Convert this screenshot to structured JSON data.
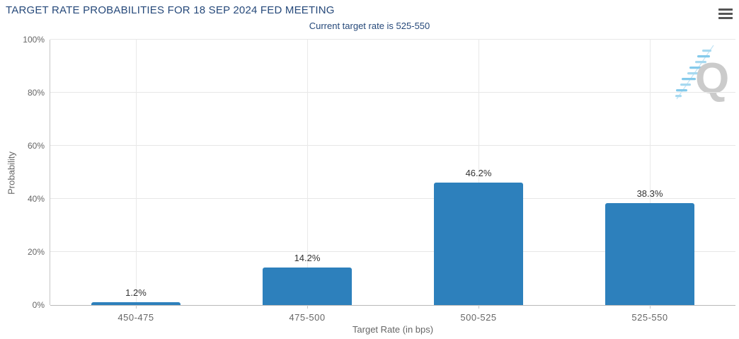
{
  "header": {
    "title": "TARGET RATE PROBABILITIES FOR 18 SEP 2024 FED MEETING",
    "subtitle": "Current target rate is 525-550"
  },
  "icons": {
    "menu": "hamburger-menu-icon",
    "watermark": "quikstrike-q-logo-watermark"
  },
  "chart_data": {
    "type": "bar",
    "title": "TARGET RATE PROBABILITIES FOR 18 SEP 2024 FED MEETING",
    "subtitle": "Current target rate is 525-550",
    "categories": [
      "450-475",
      "475-500",
      "500-525",
      "525-550"
    ],
    "values": [
      1.2,
      14.2,
      46.2,
      38.3
    ],
    "value_labels": [
      "1.2%",
      "14.2%",
      "46.2%",
      "38.3%"
    ],
    "xlabel": "Target Rate (in bps)",
    "ylabel": "Probability",
    "ylim": [
      0,
      100
    ],
    "yticks": [
      0,
      20,
      40,
      60,
      80,
      100
    ],
    "ytick_labels": [
      "0%",
      "20%",
      "40%",
      "60%",
      "80%",
      "100%"
    ],
    "grid": true,
    "legend": "none",
    "watermark_letter": "Q"
  },
  "colors": {
    "title": "#26497a",
    "subtitle": "#26497a",
    "bar": "#2d80bc",
    "data_label": "#333333",
    "axis_label": "#666666",
    "gridline": "#e7e7e7",
    "axis_line": "#b9b9b9",
    "menu_icon": "#555555",
    "watermark_q": "#c9c9c9",
    "watermark_stripes": "#a3d8f0"
  }
}
